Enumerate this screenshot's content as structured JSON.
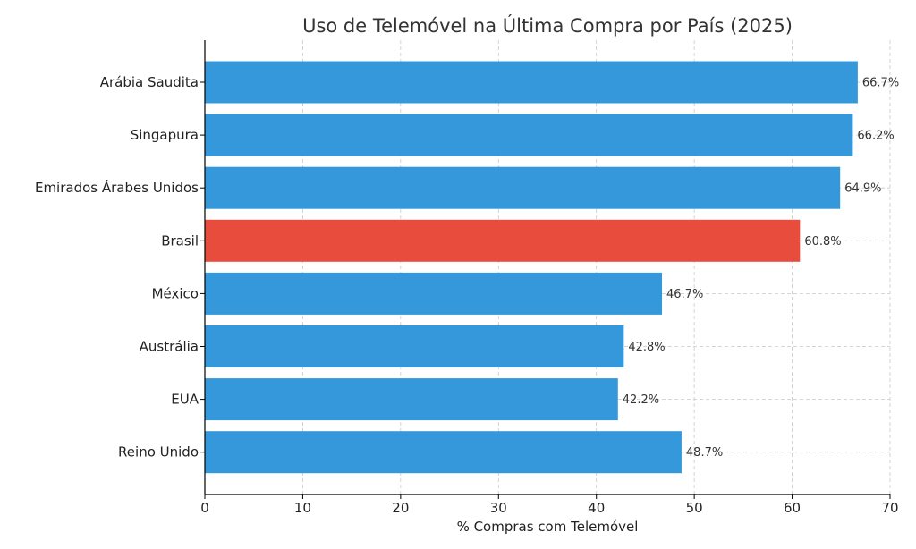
{
  "chart_data": {
    "type": "bar",
    "orientation": "horizontal",
    "title": "Uso de Telemóvel na Última Compra por País (2025)",
    "xlabel": "% Compras com Telemóvel",
    "ylabel": "",
    "xlim": [
      0,
      70
    ],
    "xticks": [
      0,
      10,
      20,
      30,
      40,
      50,
      60,
      70
    ],
    "grid": true,
    "categories": [
      "Arábia Saudita",
      "Singapura",
      "Emirados Árabes Unidos",
      "Brasil",
      "México",
      "Austrália",
      "EUA",
      "Reino Unido"
    ],
    "values": [
      66.7,
      66.2,
      64.9,
      60.8,
      46.7,
      42.8,
      42.2,
      48.7
    ],
    "labels": [
      "66.7%",
      "66.2%",
      "64.9%",
      "60.8%",
      "46.7%",
      "42.8%",
      "42.2%",
      "48.7%"
    ],
    "colors": [
      "#3498db",
      "#3498db",
      "#3498db",
      "#e74c3c",
      "#3498db",
      "#3498db",
      "#3498db",
      "#3498db"
    ],
    "highlight": "Brasil"
  }
}
